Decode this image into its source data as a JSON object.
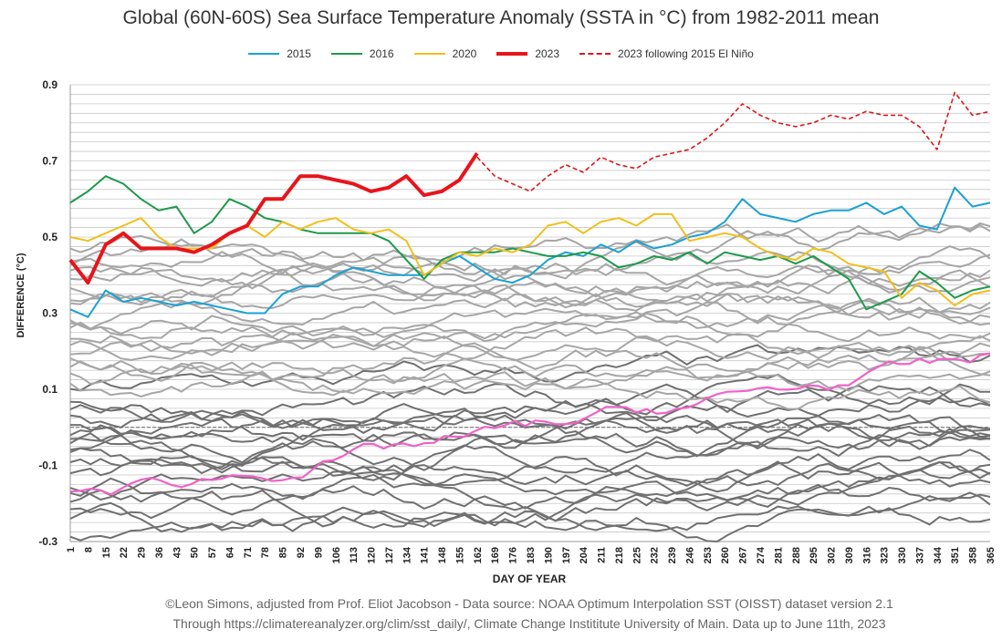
{
  "chart_data": {
    "type": "line",
    "title": "Global (60N-60S) Sea Surface Temperature Anomaly (SSTA in °C) from 1982-2011 mean",
    "xlabel": "DAY OF YEAR",
    "ylabel": "DIFFERENCE (°C)",
    "xlim": [
      1,
      365
    ],
    "ylim": [
      -0.3,
      0.9
    ],
    "x_ticks": [
      1,
      8,
      15,
      22,
      29,
      36,
      43,
      50,
      57,
      64,
      71,
      78,
      85,
      92,
      99,
      106,
      113,
      120,
      127,
      134,
      141,
      148,
      155,
      162,
      169,
      176,
      183,
      190,
      197,
      204,
      211,
      218,
      225,
      232,
      239,
      246,
      253,
      260,
      267,
      274,
      281,
      288,
      295,
      302,
      309,
      316,
      323,
      330,
      337,
      344,
      351,
      358,
      365
    ],
    "y_ticks": [
      -0.3,
      -0.1,
      0.1,
      0.3,
      0.5,
      0.7,
      0.9
    ],
    "grid": true,
    "legend_position": "top",
    "series": [
      {
        "name": "2015",
        "color": "#1ba1d4",
        "style": "solid",
        "width": 2,
        "x": [
          1,
          8,
          15,
          22,
          29,
          36,
          43,
          50,
          57,
          64,
          71,
          78,
          85,
          92,
          99,
          106,
          113,
          120,
          127,
          134,
          141,
          148,
          155,
          162,
          169,
          176,
          183,
          190,
          197,
          204,
          211,
          218,
          225,
          232,
          239,
          246,
          253,
          260,
          267,
          274,
          281,
          288,
          295,
          302,
          309,
          316,
          323,
          330,
          337,
          344,
          351,
          358,
          365
        ],
        "y": [
          0.31,
          0.29,
          0.36,
          0.33,
          0.34,
          0.33,
          0.32,
          0.33,
          0.32,
          0.31,
          0.3,
          0.3,
          0.35,
          0.37,
          0.37,
          0.4,
          0.42,
          0.41,
          0.4,
          0.4,
          0.4,
          0.43,
          0.45,
          0.42,
          0.39,
          0.38,
          0.4,
          0.44,
          0.46,
          0.45,
          0.48,
          0.46,
          0.49,
          0.47,
          0.48,
          0.5,
          0.51,
          0.54,
          0.6,
          0.56,
          0.55,
          0.54,
          0.56,
          0.57,
          0.57,
          0.59,
          0.56,
          0.58,
          0.53,
          0.52,
          0.63,
          0.58,
          0.59
        ]
      },
      {
        "name": "2016",
        "color": "#1e9a4b",
        "style": "solid",
        "width": 2,
        "x": [
          1,
          8,
          15,
          22,
          29,
          36,
          43,
          50,
          57,
          64,
          71,
          78,
          85,
          92,
          99,
          106,
          113,
          120,
          127,
          134,
          141,
          148,
          155,
          162,
          169,
          176,
          183,
          190,
          197,
          204,
          211,
          218,
          225,
          232,
          239,
          246,
          253,
          260,
          267,
          274,
          281,
          288,
          295,
          302,
          309,
          316,
          323,
          330,
          337,
          344,
          351,
          358,
          365
        ],
        "y": [
          0.59,
          0.62,
          0.66,
          0.64,
          0.6,
          0.57,
          0.58,
          0.51,
          0.54,
          0.6,
          0.58,
          0.55,
          0.54,
          0.52,
          0.51,
          0.51,
          0.51,
          0.51,
          0.49,
          0.44,
          0.39,
          0.44,
          0.46,
          0.46,
          0.46,
          0.47,
          0.46,
          0.45,
          0.45,
          0.46,
          0.45,
          0.42,
          0.43,
          0.45,
          0.44,
          0.46,
          0.43,
          0.46,
          0.45,
          0.44,
          0.45,
          0.43,
          0.45,
          0.42,
          0.39,
          0.31,
          0.33,
          0.35,
          0.41,
          0.38,
          0.34,
          0.36,
          0.37
        ]
      },
      {
        "name": "2020",
        "color": "#f2bf1c",
        "style": "solid",
        "width": 2,
        "x": [
          1,
          8,
          15,
          22,
          29,
          36,
          43,
          50,
          57,
          64,
          71,
          78,
          85,
          92,
          99,
          106,
          113,
          120,
          127,
          134,
          141,
          148,
          155,
          162,
          169,
          176,
          183,
          190,
          197,
          204,
          211,
          218,
          225,
          232,
          239,
          246,
          253,
          260,
          267,
          274,
          281,
          288,
          295,
          302,
          309,
          316,
          323,
          330,
          337,
          344,
          351,
          358,
          365
        ],
        "y": [
          0.5,
          0.49,
          0.51,
          0.53,
          0.55,
          0.5,
          0.47,
          0.47,
          0.47,
          0.51,
          0.53,
          0.5,
          0.54,
          0.52,
          0.54,
          0.55,
          0.52,
          0.51,
          0.52,
          0.49,
          0.4,
          0.43,
          0.46,
          0.45,
          0.47,
          0.46,
          0.48,
          0.53,
          0.54,
          0.51,
          0.54,
          0.55,
          0.53,
          0.56,
          0.56,
          0.49,
          0.5,
          0.51,
          0.5,
          0.47,
          0.45,
          0.44,
          0.47,
          0.46,
          0.43,
          0.42,
          0.41,
          0.34,
          0.38,
          0.36,
          0.32,
          0.35,
          0.36
        ]
      },
      {
        "name": "2023",
        "color": "#e8141b",
        "style": "solid",
        "width": 4,
        "x": [
          1,
          8,
          15,
          22,
          29,
          36,
          43,
          50,
          57,
          64,
          71,
          78,
          85,
          92,
          99,
          106,
          113,
          120,
          127,
          134,
          141,
          148,
          155,
          162
        ],
        "y": [
          0.44,
          0.38,
          0.48,
          0.51,
          0.47,
          0.47,
          0.47,
          0.46,
          0.48,
          0.51,
          0.53,
          0.6,
          0.6,
          0.66,
          0.66,
          0.65,
          0.64,
          0.62,
          0.63,
          0.66,
          0.61,
          0.62,
          0.65,
          0.72
        ]
      },
      {
        "name": "2023 following 2015 El Niño",
        "color": "#d7191c",
        "style": "dashed",
        "width": 1.6,
        "x": [
          162,
          169,
          176,
          183,
          190,
          197,
          204,
          211,
          218,
          225,
          232,
          239,
          246,
          253,
          260,
          267,
          274,
          281,
          288,
          295,
          302,
          309,
          316,
          323,
          330,
          337,
          344,
          351,
          358,
          365
        ],
        "y": [
          0.71,
          0.66,
          0.64,
          0.62,
          0.66,
          0.69,
          0.67,
          0.71,
          0.69,
          0.68,
          0.71,
          0.72,
          0.73,
          0.76,
          0.8,
          0.85,
          0.82,
          0.8,
          0.79,
          0.8,
          0.82,
          0.81,
          0.83,
          0.82,
          0.82,
          0.79,
          0.73,
          0.88,
          0.82,
          0.83
        ]
      }
    ]
  },
  "legend": [
    "2015",
    "2016",
    "2020",
    "2023",
    "2023 following 2015 El Niño"
  ],
  "footer": {
    "line1": "©Leon Simons, adjusted from Prof. Eliot Jacobson - Data source: NOAA Optimum Interpolation SST (OISST) dataset version 2.1",
    "line2": "Through https://climatereanalyzer.org/clim/sst_daily/, Climate Change Instititute University of Main. Data up to June 11th, 2023"
  }
}
